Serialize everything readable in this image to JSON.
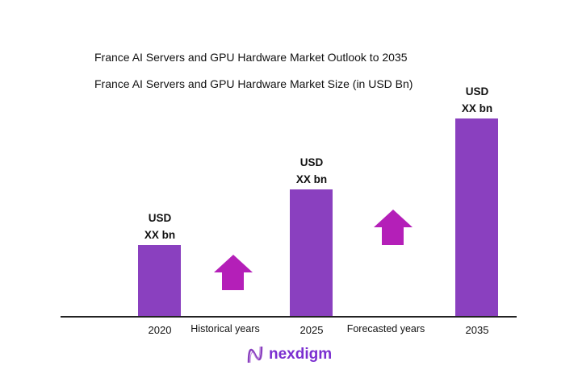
{
  "chart_data": {
    "type": "bar",
    "title": "France AI Servers and GPU Hardware Market Outlook to 2035",
    "subtitle": "France AI Servers and GPU Hardware Market Size (in USD Bn)",
    "categories": [
      "2020",
      "2025",
      "2035"
    ],
    "data_labels": [
      [
        "USD",
        "XX bn"
      ],
      [
        "USD",
        "XX bn"
      ],
      [
        "USD",
        "XX bn"
      ]
    ],
    "relative_levels": [
      0.36,
      0.64,
      1.0
    ],
    "period_labels": [
      "Historical years",
      "Forecasted years"
    ],
    "bar_color": "#8a40bf",
    "arrow_color": "#b41fb8",
    "grid": false
  },
  "brand": {
    "name": "nexdigm",
    "color": "#7b2fd0"
  }
}
